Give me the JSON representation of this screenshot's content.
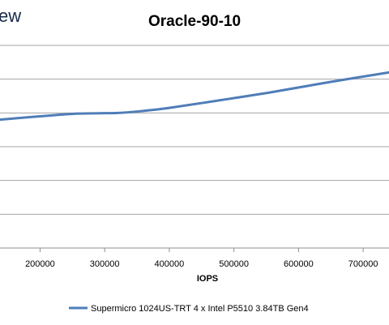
{
  "logo_fragment": "ew",
  "chart_data": {
    "type": "line",
    "title": "Oracle-90-10",
    "xlabel": "IOPS",
    "ylabel": "",
    "x_ticks": [
      200000,
      300000,
      400000,
      500000,
      600000,
      700000
    ],
    "x_tick_labels": [
      "200000",
      "300000",
      "400000",
      "500000",
      "600000",
      "700000"
    ],
    "xlim": [
      138000,
      740000
    ],
    "ylim": [
      0,
      6
    ],
    "grid": true,
    "legend_position": "bottom",
    "series": [
      {
        "name": "Supermicro 1024US-TRT 4 x Intel P5510 3.84TB Gen4",
        "color": "#4f7db8",
        "x": [
          138000,
          200000,
          260000,
          320000,
          360000,
          400000,
          480000,
          560000,
          650000,
          740000
        ],
        "y": [
          3.8,
          3.9,
          3.98,
          4.0,
          4.06,
          4.15,
          4.38,
          4.62,
          4.92,
          5.2
        ]
      }
    ]
  }
}
